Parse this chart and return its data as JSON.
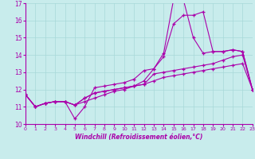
{
  "xlabel": "Windchill (Refroidissement éolien,°C)",
  "ylabel": "",
  "background_color": "#c8ecec",
  "grid_color": "#a8d8d8",
  "line_color": "#aa00aa",
  "xlim": [
    0,
    23
  ],
  "ylim": [
    10,
    17
  ],
  "yticks": [
    10,
    11,
    12,
    13,
    14,
    15,
    16,
    17
  ],
  "xticks": [
    0,
    1,
    2,
    3,
    4,
    5,
    6,
    7,
    8,
    9,
    10,
    11,
    12,
    13,
    14,
    15,
    16,
    17,
    18,
    19,
    20,
    21,
    22,
    23
  ],
  "series": [
    [
      11.7,
      11.0,
      11.2,
      11.3,
      11.3,
      10.3,
      11.0,
      12.1,
      12.2,
      12.3,
      12.4,
      12.6,
      13.1,
      13.2,
      14.1,
      17.2,
      17.2,
      15.0,
      14.1,
      14.2,
      14.2,
      14.3,
      14.2,
      12.0
    ],
    [
      11.7,
      11.0,
      11.2,
      11.3,
      11.3,
      11.1,
      11.3,
      11.5,
      11.7,
      11.9,
      12.0,
      12.2,
      12.5,
      13.2,
      13.9,
      15.8,
      16.3,
      16.3,
      16.5,
      14.2,
      14.2,
      14.3,
      14.2,
      12.0
    ],
    [
      11.7,
      11.0,
      11.2,
      11.3,
      11.3,
      11.1,
      11.5,
      11.8,
      11.9,
      12.0,
      12.1,
      12.2,
      12.3,
      12.9,
      13.0,
      13.1,
      13.2,
      13.3,
      13.4,
      13.5,
      13.7,
      13.9,
      14.0,
      12.0
    ],
    [
      11.7,
      11.0,
      11.2,
      11.3,
      11.3,
      11.1,
      11.5,
      11.8,
      11.9,
      12.0,
      12.1,
      12.2,
      12.3,
      12.5,
      12.7,
      12.8,
      12.9,
      13.0,
      13.1,
      13.2,
      13.3,
      13.4,
      13.5,
      12.0
    ]
  ]
}
